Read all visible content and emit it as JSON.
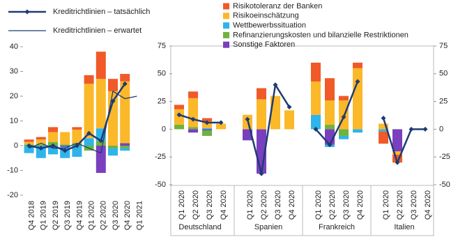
{
  "chart_data": [
    {
      "type": "bar",
      "categories": [
        "Q4 2018",
        "Q1 2019",
        "Q2 2019",
        "Q3 2019",
        "Q4 2019",
        "Q1 2020",
        "Q2 2020",
        "Q3 2020",
        "Q4 2020",
        "Q1 2021"
      ],
      "ylim": [
        -20,
        40
      ],
      "yticks": [
        -20,
        -10,
        0,
        10,
        20,
        30,
        40
      ],
      "series": [
        {
          "name": "Risikotoleranz der Banken",
          "color": "#f05a28",
          "values": [
            1,
            1,
            2,
            0,
            1,
            3.5,
            11,
            5,
            3,
            null
          ]
        },
        {
          "name": "Risikoeinschätzung",
          "color": "#fbb829",
          "values": [
            1,
            2,
            4,
            5,
            5.5,
            22,
            20,
            22,
            25,
            null
          ]
        },
        {
          "name": "Wettbewerbssituation",
          "color": "#2fb4e9",
          "values": [
            -3,
            -5,
            -3.5,
            -4.5,
            -4.5,
            3,
            5,
            -3,
            -1,
            null
          ]
        },
        {
          "name": "Refinanzierungskosten und bilanzielle Restriktionen",
          "color": "#6cb33f",
          "values": [
            0.5,
            0.5,
            1.5,
            0.5,
            1,
            -2,
            2,
            -1,
            -1,
            null
          ]
        },
        {
          "name": "Sonstige Faktoren",
          "color": "#7a3fbf",
          "values": [
            0,
            0,
            0,
            -0.5,
            0,
            0,
            -11,
            0,
            1,
            null
          ]
        },
        {
          "name": "Kreditrichtlinien – tatsächlich",
          "type": "line",
          "marker": "diamond",
          "color": "#1f3b73",
          "values": [
            0,
            -1,
            0,
            -2,
            0,
            5,
            2,
            18,
            25,
            null
          ]
        },
        {
          "name": "Kreditrichtlinien – erwartet",
          "type": "line",
          "color": "#1f3b73",
          "values": [
            -1,
            1,
            -1,
            -1,
            1,
            -1,
            -3,
            22,
            19,
            20
          ]
        }
      ]
    },
    {
      "type": "bar",
      "title": "Deutschland",
      "categories": [
        "Q1 2020",
        "Q2 2020",
        "Q3 2020",
        "Q4 2020"
      ],
      "ylim": [
        -50,
        75
      ],
      "yticks": [
        -50,
        -25,
        0,
        25,
        50,
        75
      ],
      "ytick_side": "left",
      "series": [
        {
          "color": "#f05a28",
          "values": [
            4,
            6,
            3,
            0
          ]
        },
        {
          "color": "#fbb829",
          "values": [
            14,
            26,
            6,
            5
          ]
        },
        {
          "color": "#2fb4e9",
          "values": [
            0,
            0,
            1,
            0
          ]
        },
        {
          "color": "#6cb33f",
          "values": [
            4,
            2,
            -5,
            0
          ]
        },
        {
          "color": "#7a3fbf",
          "values": [
            0,
            -3,
            -1,
            0
          ]
        }
      ],
      "line": {
        "color": "#1f3b73",
        "marker": "diamond",
        "values": [
          13,
          9,
          6,
          6
        ]
      }
    },
    {
      "type": "bar",
      "title": "Spanien",
      "categories": [
        "Q1 2020",
        "Q2 2020",
        "Q3 2020",
        "Q4 2020"
      ],
      "ylim": [
        -50,
        75
      ],
      "series": [
        {
          "color": "#f05a28",
          "values": [
            0,
            10,
            0,
            0
          ]
        },
        {
          "color": "#fbb829",
          "values": [
            13,
            27,
            30,
            17
          ]
        },
        {
          "color": "#2fb4e9",
          "values": [
            0,
            0,
            0,
            0
          ]
        },
        {
          "color": "#6cb33f",
          "values": [
            0,
            0,
            0,
            0
          ]
        },
        {
          "color": "#7a3fbf",
          "values": [
            -10,
            -40,
            0,
            0
          ]
        }
      ],
      "line": {
        "color": "#1f3b73",
        "marker": "diamond",
        "values": [
          9,
          -40,
          40,
          20
        ]
      }
    },
    {
      "type": "bar",
      "title": "Frankreich",
      "categories": [
        "Q1 2020",
        "Q2 2020",
        "Q3 2020",
        "Q4 2020"
      ],
      "ylim": [
        -50,
        75
      ],
      "series": [
        {
          "color": "#f05a28",
          "values": [
            17,
            20,
            4,
            5
          ]
        },
        {
          "color": "#fbb829",
          "values": [
            30,
            22,
            26,
            55
          ]
        },
        {
          "color": "#2fb4e9",
          "values": [
            13,
            -2,
            -3,
            -3
          ]
        },
        {
          "color": "#6cb33f",
          "values": [
            0,
            4,
            -6,
            0
          ]
        },
        {
          "color": "#7a3fbf",
          "values": [
            0,
            -14,
            0,
            0
          ]
        }
      ],
      "line": {
        "color": "#1f3b73",
        "marker": "diamond",
        "values": [
          0,
          -14,
          11,
          43
        ]
      }
    },
    {
      "type": "bar",
      "title": "Italien",
      "categories": [
        "Q1 2020",
        "Q2 2020",
        "Q3 2020",
        "Q4 2020"
      ],
      "ylim": [
        -50,
        75
      ],
      "yticks": [
        -50,
        -25,
        0,
        25,
        50,
        75
      ],
      "ytick_side": "right",
      "series": [
        {
          "color": "#f05a28",
          "values": [
            -11,
            -7,
            0,
            0
          ]
        },
        {
          "color": "#fbb829",
          "values": [
            5,
            -3,
            0,
            0
          ]
        },
        {
          "color": "#2fb4e9",
          "values": [
            -2,
            0,
            0,
            0
          ]
        },
        {
          "color": "#6cb33f",
          "values": [
            0,
            0,
            0,
            0
          ]
        },
        {
          "color": "#7a3fbf",
          "values": [
            0,
            -20,
            0,
            0
          ]
        }
      ],
      "line": {
        "color": "#1f3b73",
        "marker": "diamond",
        "values": [
          10,
          -30,
          0,
          0
        ]
      }
    }
  ]
}
